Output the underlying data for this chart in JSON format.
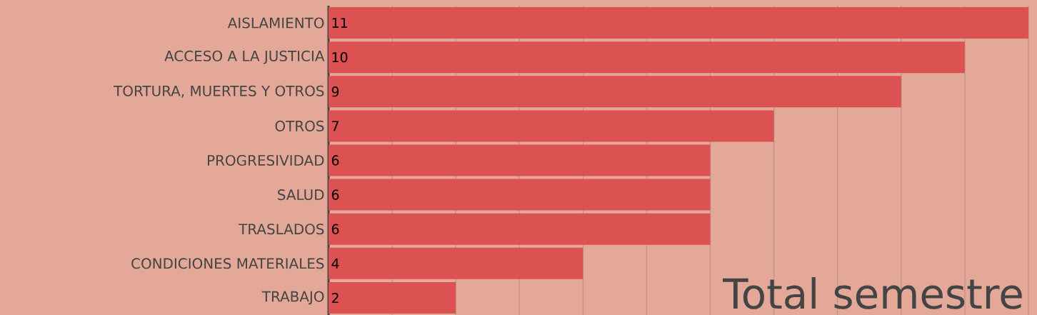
{
  "chart_data": {
    "type": "bar",
    "orientation": "horizontal",
    "title": "Total semestre",
    "categories": [
      "AISLAMIENTO",
      "ACCESO A LA JUSTICIA",
      "TORTURA, MUERTES Y OTROS",
      "OTROS",
      "PROGRESIVIDAD",
      "SALUD",
      "TRASLADOS",
      "CONDICIONES MATERIALES",
      "TRABAJO"
    ],
    "values": [
      11,
      10,
      9,
      7,
      6,
      6,
      6,
      4,
      2
    ],
    "color": "#dc5253",
    "xlim": [
      0,
      11
    ],
    "xticks": [
      {
        "value": 0,
        "label": null
      },
      {
        "value": 1,
        "label": null
      },
      {
        "value": 2,
        "label": null
      },
      {
        "value": 3,
        "label": null
      },
      {
        "value": 4,
        "label": null
      },
      {
        "value": 5,
        "label": null
      },
      {
        "value": 6,
        "label": null
      },
      {
        "value": 7,
        "label": null
      },
      {
        "value": 8,
        "label": null
      },
      {
        "value": 9,
        "label": null
      },
      {
        "value": 10,
        "label": null
      },
      {
        "value": 11,
        "label": null
      }
    ],
    "grid": "x",
    "tick_labels": "y",
    "data_labels": true
  }
}
